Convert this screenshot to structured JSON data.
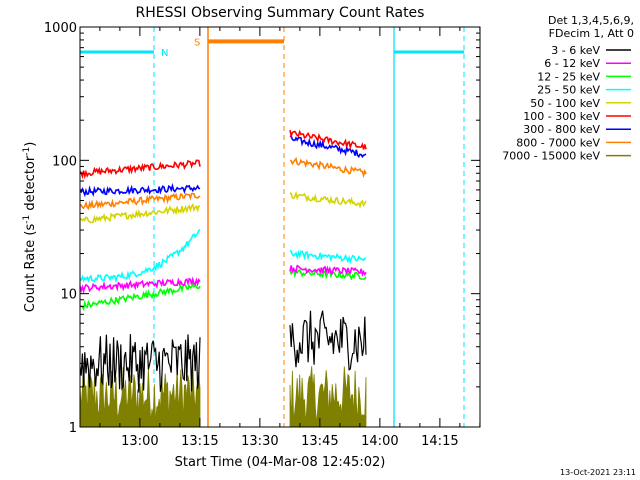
{
  "chart_data": {
    "type": "line",
    "title": "RHESSI Observing Summary Count Rates",
    "xlabel": "Start Time (04-Mar-08 12:45:02)",
    "ylabel_main": "Count Rate (s",
    "ylabel_sup1": "-1",
    "ylabel_mid": " detector",
    "ylabel_sup2": "-1",
    "ylabel_end": ")",
    "y_scale": "log",
    "ylim": [
      1,
      1000
    ],
    "xlim_minutes": [
      0,
      100
    ],
    "x_ticks": [
      {
        "label": "13:00",
        "minute": 14.97
      },
      {
        "label": "13:15",
        "minute": 29.97
      },
      {
        "label": "13:30",
        "minute": 44.97
      },
      {
        "label": "13:45",
        "minute": 59.97
      },
      {
        "label": "14:00",
        "minute": 74.97
      },
      {
        "label": "14:15",
        "minute": 89.97
      }
    ],
    "y_ticks": [
      {
        "label": "1",
        "value": 1
      },
      {
        "label": "10",
        "value": 10
      },
      {
        "label": "100",
        "value": 100
      },
      {
        "label": "1000",
        "value": 1000
      }
    ],
    "legend_header": [
      "Det 1,3,4,5,6,9,",
      "FDecim 1, Att 0"
    ],
    "series": [
      {
        "name": "3 - 6 keV",
        "color": "#000000",
        "segments": [
          {
            "x": [
              0,
              30
            ],
            "y": [
              3.0,
              3.0
            ],
            "noisy": true
          },
          {
            "x": [
              52.5,
              71.5
            ],
            "y": [
              4.6,
              4.4
            ],
            "noisy": true
          }
        ]
      },
      {
        "name": "6 - 12 keV",
        "color": "#ff00ff",
        "segments": [
          {
            "x": [
              0,
              30
            ],
            "y": [
              11,
              12.5
            ]
          },
          {
            "x": [
              52.5,
              71.5
            ],
            "y": [
              15.5,
              14.5
            ]
          }
        ]
      },
      {
        "name": "12 - 25 keV",
        "color": "#00ff00",
        "segments": [
          {
            "x": [
              0,
              30
            ],
            "y": [
              8,
              11.5
            ]
          },
          {
            "x": [
              52.5,
              71.5
            ],
            "y": [
              14.5,
              13.5
            ]
          }
        ]
      },
      {
        "name": "25 - 50 keV",
        "color": "#00ffff",
        "segments": [
          {
            "x": [
              0,
              30
            ],
            "y": [
              13,
              30
            ]
          },
          {
            "x": [
              52.5,
              71.5
            ],
            "y": [
              20,
              18
            ]
          }
        ]
      },
      {
        "name": "50 - 100 keV",
        "color": "#d4d400",
        "segments": [
          {
            "x": [
              0,
              30
            ],
            "y": [
              35,
              45
            ]
          },
          {
            "x": [
              52.5,
              71.5
            ],
            "y": [
              55,
              47
            ]
          }
        ]
      },
      {
        "name": "100 - 300 keV",
        "color": "#ff0000",
        "segments": [
          {
            "x": [
              0,
              30
            ],
            "y": [
              80,
              95
            ]
          },
          {
            "x": [
              52.5,
              71.5
            ],
            "y": [
              160,
              125
            ]
          }
        ]
      },
      {
        "name": "300 - 800 keV",
        "color": "#0000ff",
        "segments": [
          {
            "x": [
              0,
              30
            ],
            "y": [
              58,
              62
            ]
          },
          {
            "x": [
              52.5,
              71.5
            ],
            "y": [
              145,
              110
            ]
          }
        ]
      },
      {
        "name": "800 - 7000 keV",
        "color": "#ff8000",
        "segments": [
          {
            "x": [
              0,
              30
            ],
            "y": [
              45,
              55
            ]
          },
          {
            "x": [
              52.5,
              71.5
            ],
            "y": [
              100,
              80
            ]
          }
        ]
      },
      {
        "name": "7000 - 15000 keV",
        "color": "#808000",
        "segments": [
          {
            "x": [
              0,
              30
            ],
            "y": [
              1.7,
              1.8
            ],
            "noisy": true,
            "fill_to_bottom": true
          },
          {
            "x": [
              52.5,
              71.5
            ],
            "y": [
              1.7,
              1.8
            ],
            "noisy": true,
            "fill_to_bottom": true
          }
        ]
      }
    ],
    "annotations": {
      "night_label": "N",
      "night_color": "#00e5ff",
      "night_bars": [
        {
          "x": [
            0,
            18.5
          ],
          "y": 650
        },
        {
          "x": [
            78.5,
            96
          ],
          "y": 650
        }
      ],
      "night_dashed": [
        18.5,
        96
      ],
      "night_solid": [
        78.5
      ],
      "saa_label": "S",
      "saa_color": "#ff8000",
      "saa_bar": {
        "x": [
          32,
          51
        ],
        "y": 780
      },
      "saa_solid": [
        32
      ],
      "saa_dashed": [
        51
      ]
    }
  },
  "footer": {
    "timestamp": "13-Oct-2021 23:11"
  }
}
